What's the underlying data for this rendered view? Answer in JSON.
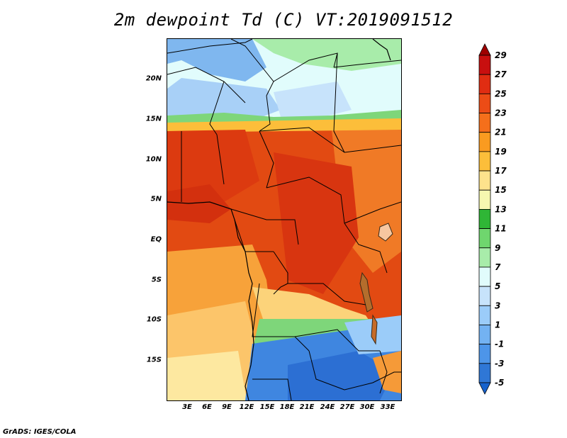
{
  "title": "2m dewpoint Td (C) VT:2019091512",
  "footer": "GrADS: IGES/COLA",
  "map": {
    "lat_labels": [
      "20N",
      "15N",
      "10N",
      "5N",
      "EQ",
      "5S",
      "10S",
      "15S"
    ],
    "lon_labels": [
      "3E",
      "6E",
      "9E",
      "12E",
      "15E",
      "18E",
      "21E",
      "24E",
      "27E",
      "30E",
      "33E"
    ]
  },
  "colorbar": {
    "levels": [
      "29",
      "27",
      "25",
      "23",
      "21",
      "19",
      "17",
      "15",
      "13",
      "11",
      "9",
      "7",
      "5",
      "3",
      "1",
      "-1",
      "-3",
      "-5"
    ],
    "colors": [
      "#9e0000",
      "#c80f0f",
      "#e02d12",
      "#ec4c16",
      "#f56f1b",
      "#fa9b20",
      "#fcbe3a",
      "#fde28c",
      "#f6f8b0",
      "#2fb636",
      "#6fd66e",
      "#a8ecaa",
      "#e1fcfc",
      "#c7e3fb",
      "#9bccf9",
      "#73b2f2",
      "#4d95e9",
      "#2f77d6",
      "#1662cd"
    ]
  }
}
